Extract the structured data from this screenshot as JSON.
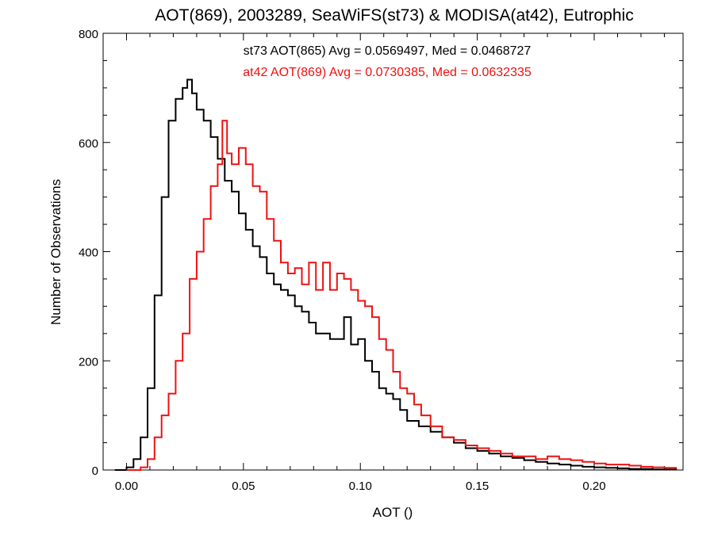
{
  "chart_data": {
    "type": "line",
    "title": "AOT(869), 2003289, SeaWiFS(st73) & MODISA(at42), Eutrophic",
    "xlabel": "AOT ()",
    "ylabel": "Number of Observations",
    "xlim": [
      -0.01,
      0.238
    ],
    "ylim": [
      0,
      800
    ],
    "xticks": [
      0.0,
      0.05,
      0.1,
      0.15,
      0.2
    ],
    "xtick_labels": [
      "0.00",
      "0.05",
      "0.10",
      "0.15",
      "0.20"
    ],
    "yticks": [
      0,
      200,
      400,
      600,
      800
    ],
    "ytick_labels": [
      "0",
      "200",
      "400",
      "600",
      "800"
    ],
    "grid": false,
    "step_style": "histogram",
    "annotations": [
      {
        "text": "st73 AOT(865) Avg = 0.0569497, Med = 0.0468727",
        "color": "#000000"
      },
      {
        "text": "at42 AOT(869) Avg = 0.0730385, Med = 0.0632335",
        "color": "#ee1111"
      }
    ],
    "series": [
      {
        "color": "#000000",
        "x": [
          -0.005,
          0.0,
          0.003,
          0.006,
          0.009,
          0.012,
          0.015,
          0.018,
          0.021,
          0.024,
          0.026,
          0.028,
          0.03,
          0.033,
          0.036,
          0.039,
          0.042,
          0.045,
          0.048,
          0.051,
          0.054,
          0.057,
          0.06,
          0.063,
          0.066,
          0.069,
          0.072,
          0.075,
          0.078,
          0.081,
          0.084,
          0.087,
          0.09,
          0.093,
          0.096,
          0.099,
          0.102,
          0.105,
          0.108,
          0.111,
          0.114,
          0.117,
          0.12,
          0.125,
          0.13,
          0.135,
          0.14,
          0.145,
          0.15,
          0.155,
          0.16,
          0.165,
          0.17,
          0.175,
          0.18,
          0.185,
          0.19,
          0.195,
          0.2,
          0.205,
          0.21,
          0.215,
          0.22,
          0.225,
          0.23,
          0.235
        ],
        "y": [
          0,
          5,
          20,
          60,
          150,
          320,
          500,
          640,
          680,
          700,
          715,
          690,
          660,
          640,
          610,
          570,
          530,
          510,
          470,
          440,
          410,
          390,
          360,
          340,
          330,
          320,
          300,
          290,
          270,
          250,
          250,
          240,
          240,
          280,
          230,
          240,
          200,
          180,
          150,
          140,
          130,
          110,
          90,
          80,
          70,
          60,
          50,
          40,
          35,
          30,
          25,
          22,
          18,
          15,
          12,
          10,
          8,
          6,
          5,
          4,
          3,
          2,
          2,
          1,
          1,
          0
        ]
      },
      {
        "color": "#ee1111",
        "x": [
          0.0,
          0.003,
          0.006,
          0.009,
          0.012,
          0.015,
          0.018,
          0.021,
          0.024,
          0.027,
          0.03,
          0.033,
          0.036,
          0.039,
          0.041,
          0.043,
          0.045,
          0.048,
          0.051,
          0.054,
          0.057,
          0.06,
          0.063,
          0.066,
          0.069,
          0.072,
          0.075,
          0.078,
          0.081,
          0.084,
          0.087,
          0.09,
          0.093,
          0.096,
          0.099,
          0.102,
          0.105,
          0.108,
          0.111,
          0.114,
          0.117,
          0.12,
          0.123,
          0.126,
          0.13,
          0.135,
          0.14,
          0.145,
          0.15,
          0.155,
          0.16,
          0.165,
          0.17,
          0.175,
          0.18,
          0.185,
          0.19,
          0.195,
          0.2,
          0.205,
          0.21,
          0.215,
          0.22,
          0.225,
          0.23,
          0.235
        ],
        "y": [
          0,
          0,
          5,
          20,
          60,
          100,
          140,
          200,
          250,
          350,
          400,
          460,
          520,
          560,
          640,
          580,
          560,
          590,
          560,
          520,
          510,
          460,
          420,
          380,
          360,
          370,
          340,
          380,
          330,
          380,
          330,
          360,
          350,
          330,
          310,
          300,
          280,
          240,
          220,
          180,
          150,
          140,
          120,
          100,
          80,
          60,
          55,
          45,
          40,
          35,
          30,
          25,
          25,
          20,
          25,
          20,
          18,
          15,
          12,
          10,
          10,
          8,
          6,
          5,
          4,
          2
        ]
      }
    ]
  }
}
